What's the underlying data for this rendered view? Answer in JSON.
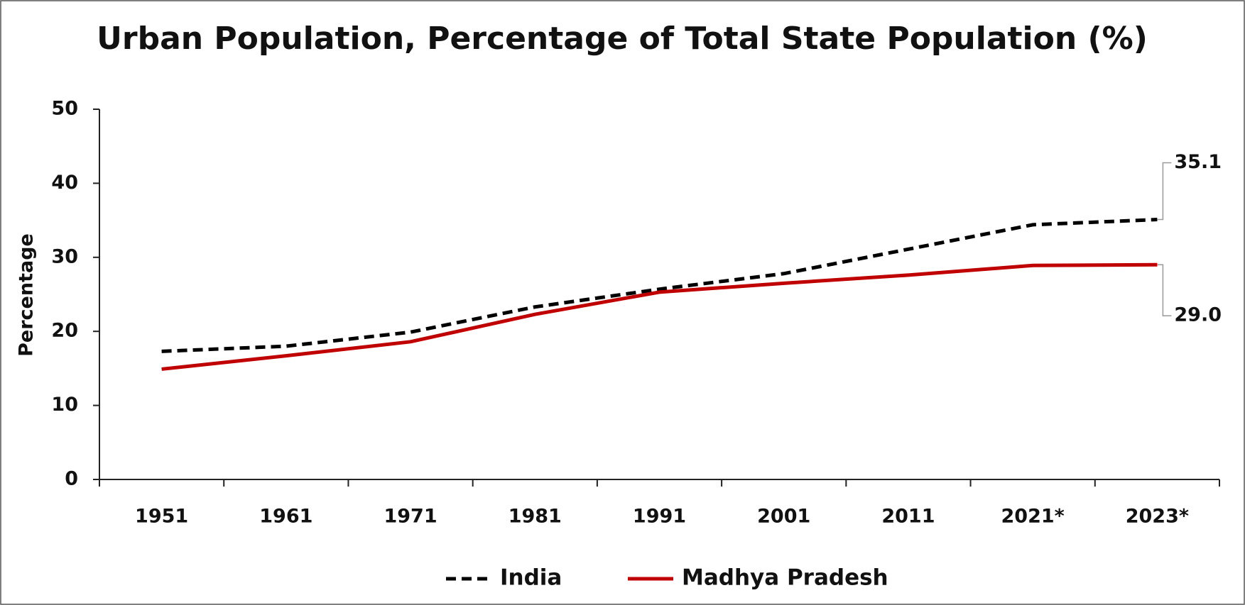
{
  "chart_data": {
    "type": "line",
    "title": "Urban Population, Percentage of Total State Population (%)",
    "y_label": "Percentage",
    "categories": [
      "1951",
      "1961",
      "1971",
      "1981",
      "1991",
      "2001",
      "2011",
      "2021*",
      "2023*"
    ],
    "series": [
      {
        "name": "India",
        "color": "#000000",
        "style": "dashed",
        "values": [
          17.3,
          18.0,
          19.9,
          23.3,
          25.7,
          27.8,
          31.1,
          34.4,
          35.1
        ],
        "value_labels": [
          null,
          null,
          null,
          null,
          null,
          null,
          null,
          null,
          "35.1"
        ]
      },
      {
        "name": "Madhya Pradesh",
        "color": "#c00000",
        "style": "solid",
        "values": [
          14.9,
          16.7,
          18.6,
          22.3,
          25.3,
          26.5,
          27.6,
          28.9,
          29.0
        ],
        "value_labels": [
          null,
          null,
          null,
          null,
          null,
          null,
          null,
          null,
          "29.0"
        ]
      }
    ],
    "ylim": [
      0,
      50
    ],
    "yticks": [
      0,
      10,
      20,
      30,
      40,
      50
    ],
    "grid": false,
    "legend": "bottom"
  }
}
